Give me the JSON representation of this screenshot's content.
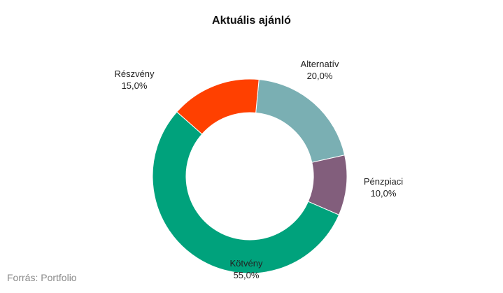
{
  "chart_data": {
    "type": "pie",
    "title": "Aktuális ajánló",
    "donut": true,
    "slices": [
      {
        "label": "Alternatív",
        "value": 20.0,
        "value_label": "20,0%",
        "color": "#7aafb3"
      },
      {
        "label": "Pénzpiaci",
        "value": 10.0,
        "value_label": "10,0%",
        "color": "#825e7c"
      },
      {
        "label": "Kötvény",
        "value": 55.0,
        "value_label": "55,0%",
        "color": "#00a27c"
      },
      {
        "label": "Részvény",
        "value": 15.0,
        "value_label": "15,0%",
        "color": "#ff4000"
      }
    ]
  },
  "source": "Forrás: Portfolio"
}
